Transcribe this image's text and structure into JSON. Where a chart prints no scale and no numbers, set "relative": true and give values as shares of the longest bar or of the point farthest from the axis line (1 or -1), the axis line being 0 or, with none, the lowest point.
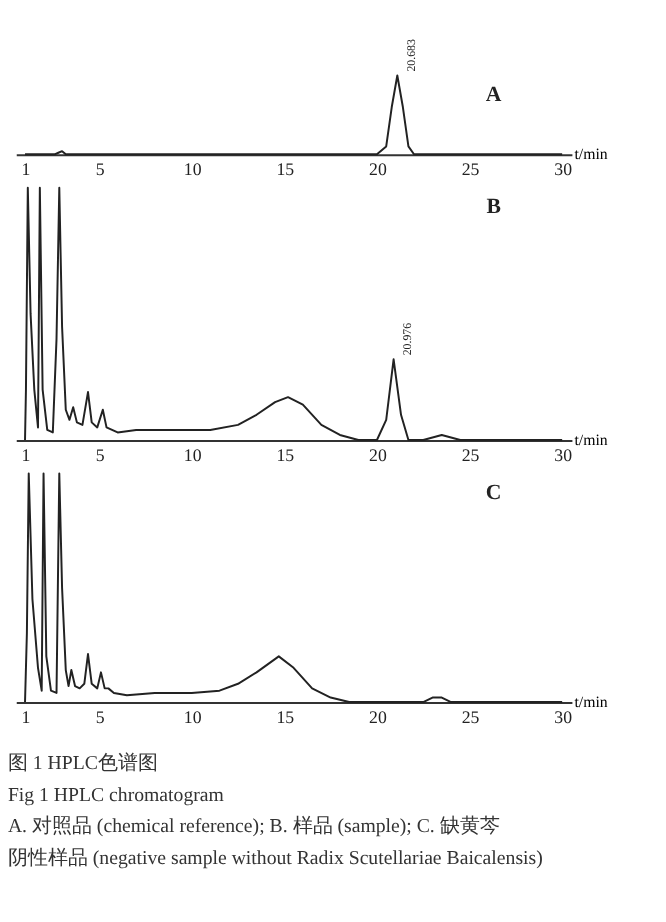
{
  "chart_data": [
    {
      "type": "line",
      "title": "A",
      "relative": true,
      "xlabel": "t/min",
      "xlim": [
        0.5,
        30.5
      ],
      "xticks": [
        1,
        5,
        10,
        15,
        20,
        25,
        30
      ],
      "grid": false,
      "marker": "none",
      "line_style": "solid",
      "series": [
        {
          "color": "#222222",
          "x": [
            1,
            2.6,
            2.8,
            3.0,
            3.2,
            20.0,
            20.5,
            20.8,
            21.1,
            21.4,
            21.7,
            22.0,
            30
          ],
          "values": [
            0,
            0,
            0.02,
            0.04,
            0,
            0,
            0.1,
            0.6,
            1,
            0.6,
            0.1,
            0,
            0
          ]
        }
      ],
      "annotations": [
        {
          "text": "20.683",
          "x": 21.1,
          "y": 1
        }
      ]
    },
    {
      "type": "line",
      "title": "B",
      "relative": true,
      "xlabel": "t/min",
      "xlim": [
        0.5,
        30.5
      ],
      "xticks": [
        1,
        5,
        10,
        15,
        20,
        25,
        30
      ],
      "grid": false,
      "marker": "none",
      "line_style": "solid",
      "series": [
        {
          "color": "#222222",
          "x": [
            1,
            1.05,
            1.15,
            1.3,
            1.5,
            1.7,
            1.8,
            1.95,
            2.2,
            2.5,
            2.7,
            2.85,
            3.0,
            3.2,
            3.4,
            3.6,
            3.8,
            4.1,
            4.4,
            4.6,
            4.9,
            5.2,
            5.4,
            5.7,
            6.0,
            7,
            9,
            11,
            12.5,
            13.5,
            14.5,
            15.2,
            16,
            17,
            18,
            19,
            20,
            20.5,
            20.9,
            21.3,
            21.7,
            22.5,
            23.5,
            24.5,
            30
          ],
          "values": [
            0,
            0.2,
            1,
            0.5,
            0.2,
            0.05,
            1,
            0.2,
            0.04,
            0.03,
            0.4,
            1,
            0.45,
            0.12,
            0.08,
            0.13,
            0.07,
            0.06,
            0.19,
            0.07,
            0.05,
            0.12,
            0.05,
            0.04,
            0.03,
            0.04,
            0.04,
            0.04,
            0.06,
            0.1,
            0.15,
            0.17,
            0.14,
            0.06,
            0.02,
            0,
            0,
            0.08,
            0.32,
            0.1,
            0,
            0,
            0.02,
            0,
            0
          ]
        }
      ],
      "annotations": [
        {
          "text": "20.976",
          "x": 20.9,
          "y": 0.32
        }
      ]
    },
    {
      "type": "line",
      "title": "C",
      "relative": true,
      "xlabel": "t/min",
      "xlim": [
        0.5,
        30.5
      ],
      "xticks": [
        1,
        5,
        10,
        15,
        20,
        25,
        30
      ],
      "grid": false,
      "marker": "none",
      "line_style": "solid",
      "series": [
        {
          "color": "#222222",
          "x": [
            1,
            1.1,
            1.2,
            1.4,
            1.7,
            1.9,
            2.0,
            2.15,
            2.4,
            2.7,
            2.85,
            3.0,
            3.2,
            3.35,
            3.5,
            3.7,
            3.95,
            4.2,
            4.4,
            4.6,
            4.9,
            5.1,
            5.3,
            5.5,
            5.8,
            6.5,
            8,
            10,
            11.5,
            12.5,
            13.5,
            14.7,
            15.5,
            16.5,
            17.5,
            18.5,
            20,
            22.5,
            23,
            23.5,
            24,
            30
          ],
          "values": [
            0,
            0.3,
            1,
            0.45,
            0.15,
            0.05,
            1,
            0.2,
            0.05,
            0.04,
            1,
            0.5,
            0.14,
            0.07,
            0.14,
            0.07,
            0.06,
            0.08,
            0.21,
            0.08,
            0.06,
            0.13,
            0.06,
            0.06,
            0.04,
            0.03,
            0.04,
            0.04,
            0.05,
            0.08,
            0.13,
            0.2,
            0.15,
            0.06,
            0.02,
            0,
            0,
            0,
            0.02,
            0.02,
            0,
            0
          ]
        }
      ],
      "annotations": [
        "图 1  HPLC色谱图",
        "Fig 1   HPLC chromatogram",
        "A. 对照品 (chemical reference); B. 样品 (sample); C. 缺黄芩",
        "阴性样品 (negative sample without Radix Scutellariae Baicalensis)"
      ]
    }
  ]
}
